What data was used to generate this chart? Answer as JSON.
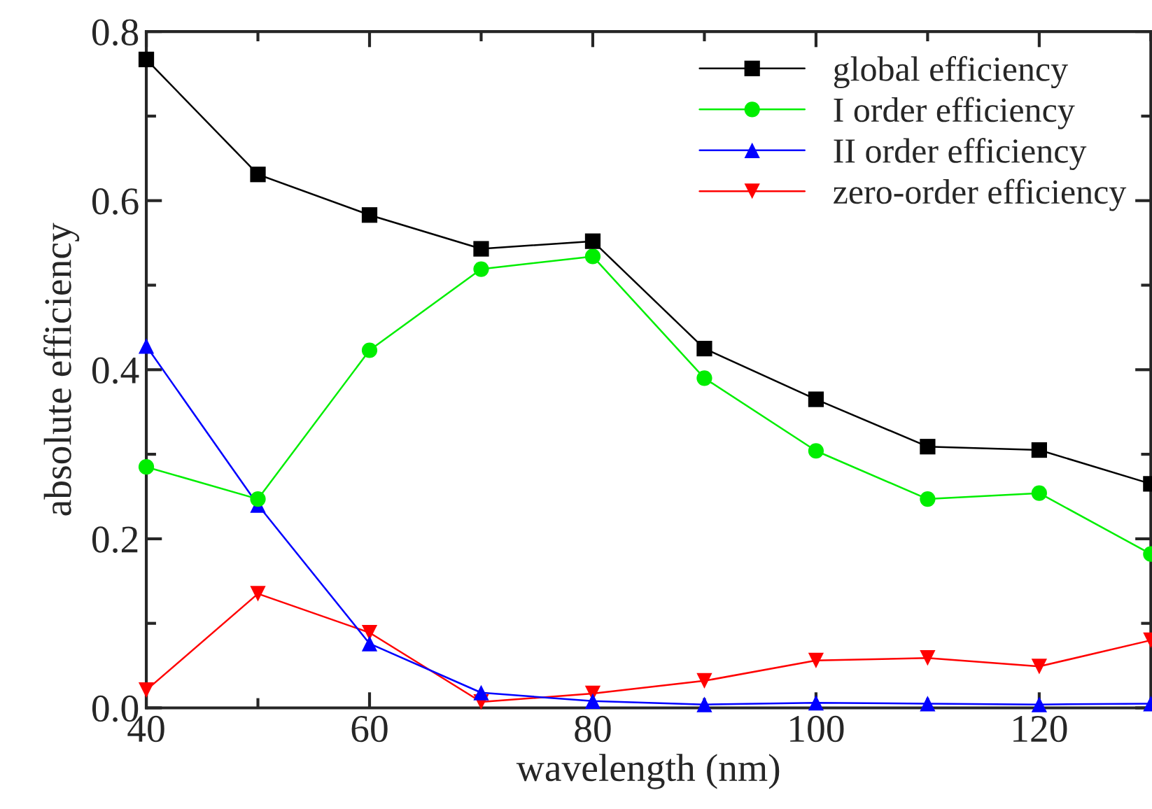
{
  "chart_data": {
    "type": "line",
    "xlabel": "wavelength (nm)",
    "ylabel": "absolute efficiency",
    "x": [
      40,
      50,
      60,
      70,
      80,
      90,
      100,
      110,
      120,
      130
    ],
    "series": [
      {
        "name": "global efficiency",
        "color": "#000000",
        "marker": "square",
        "values": [
          0.767,
          0.631,
          0.583,
          0.543,
          0.552,
          0.425,
          0.365,
          0.309,
          0.305,
          0.265
        ]
      },
      {
        "name": "I order efficiency",
        "color": "#00ee00",
        "marker": "circle",
        "values": [
          0.285,
          0.247,
          0.423,
          0.519,
          0.534,
          0.39,
          0.304,
          0.247,
          0.254,
          0.182
        ]
      },
      {
        "name": "II order efficiency",
        "color": "#0000ff",
        "marker": "triangle",
        "values": [
          0.428,
          0.24,
          0.076,
          0.018,
          0.008,
          0.004,
          0.006,
          0.005,
          0.004,
          0.005
        ]
      },
      {
        "name": "zero-order efficiency",
        "color": "#ff0000",
        "marker": "triangle_down",
        "values": [
          0.021,
          0.135,
          0.089,
          0.007,
          0.017,
          0.032,
          0.056,
          0.059,
          0.049,
          0.08
        ]
      }
    ],
    "xlim": [
      40,
      130
    ],
    "xticks": [
      40,
      60,
      80,
      100,
      120
    ],
    "ylim": [
      0,
      0.8
    ],
    "yticks": [
      {
        "value": 0,
        "label": "0.0"
      },
      0.2,
      0.4,
      0.6,
      0.8
    ],
    "grid": false,
    "legend": "top right",
    "line_style": "solid"
  }
}
